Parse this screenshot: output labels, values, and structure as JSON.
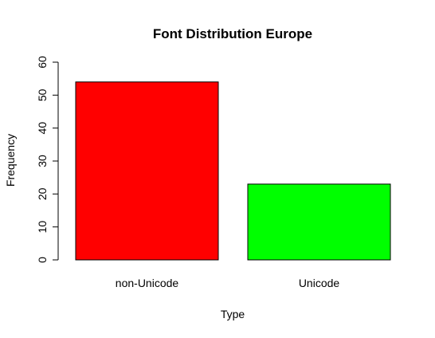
{
  "chart_data": {
    "type": "bar",
    "title": "Font Distribution Europe",
    "xlabel": "Type",
    "ylabel": "Frequency",
    "categories": [
      "non-Unicode",
      "Unicode"
    ],
    "values": [
      54,
      23
    ],
    "colors": [
      "#ff0000",
      "#00ff00"
    ],
    "ylim": [
      0,
      60
    ],
    "yticks": [
      0,
      10,
      20,
      30,
      40,
      50,
      60
    ],
    "grid": false,
    "legend": "none"
  }
}
